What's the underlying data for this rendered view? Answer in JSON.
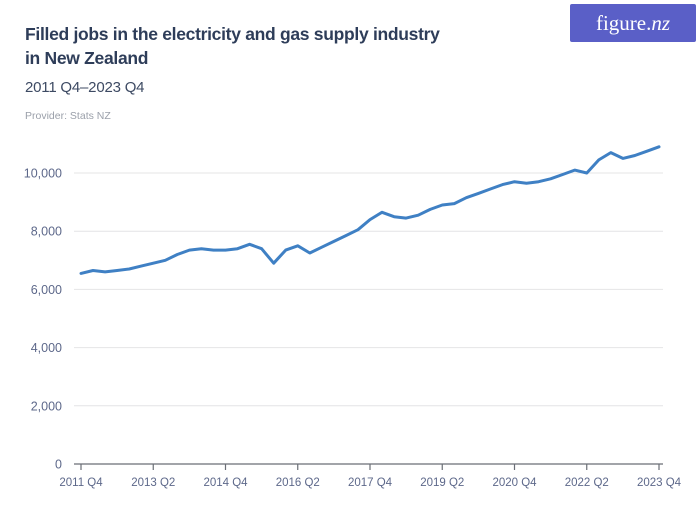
{
  "header": {
    "title_line1": "Filled jobs in the electricity and gas supply industry",
    "title_line2": "in New Zealand",
    "subtitle": "2011 Q4–2023 Q4",
    "provider": "Provider: Stats NZ"
  },
  "logo": {
    "text_regular": "figure.",
    "text_italic": "nz"
  },
  "colors": {
    "line": "#3f80c4",
    "logo_bg": "#5a5fc7",
    "title": "#2e3d59",
    "subtitle": "#3d4a63",
    "provider": "#9ba0aa",
    "axis_text": "#5d688a",
    "gridline": "#e4e4e6",
    "axis_line": "#6a6e76"
  },
  "chart_data": {
    "type": "line",
    "title": "Filled jobs in the electricity and gas supply industry in New Zealand",
    "subtitle": "2011 Q4–2023 Q4",
    "provider": "Stats NZ",
    "frequency": "quarterly",
    "legend": "none",
    "grid": "horizontal",
    "ylim": [
      0,
      11000
    ],
    "y_ticks": [
      0,
      2000,
      4000,
      6000,
      8000,
      10000
    ],
    "y_tick_labels": [
      "0",
      "2,000",
      "4,000",
      "6,000",
      "8,000",
      "10,000"
    ],
    "x_tick_labels": [
      "2011 Q4",
      "2013 Q2",
      "2014 Q4",
      "2016 Q2",
      "2017 Q4",
      "2019 Q2",
      "2020 Q4",
      "2022 Q2",
      "2023 Q4"
    ],
    "x_tick_indices": [
      0,
      6,
      12,
      18,
      24,
      30,
      36,
      42,
      48
    ],
    "x": [
      "2011 Q4",
      "2012 Q1",
      "2012 Q2",
      "2012 Q3",
      "2012 Q4",
      "2013 Q1",
      "2013 Q2",
      "2013 Q3",
      "2013 Q4",
      "2014 Q1",
      "2014 Q2",
      "2014 Q3",
      "2014 Q4",
      "2015 Q1",
      "2015 Q2",
      "2015 Q3",
      "2015 Q4",
      "2016 Q1",
      "2016 Q2",
      "2016 Q3",
      "2016 Q4",
      "2017 Q1",
      "2017 Q2",
      "2017 Q3",
      "2017 Q4",
      "2018 Q1",
      "2018 Q2",
      "2018 Q3",
      "2018 Q4",
      "2019 Q1",
      "2019 Q2",
      "2019 Q3",
      "2019 Q4",
      "2020 Q1",
      "2020 Q2",
      "2020 Q3",
      "2020 Q4",
      "2021 Q1",
      "2021 Q2",
      "2021 Q3",
      "2021 Q4",
      "2022 Q1",
      "2022 Q2",
      "2022 Q3",
      "2022 Q4",
      "2023 Q1",
      "2023 Q2",
      "2023 Q3",
      "2023 Q4"
    ],
    "series": [
      {
        "name": "Filled jobs",
        "values": [
          6550,
          6650,
          6600,
          6650,
          6700,
          6800,
          6900,
          7000,
          7200,
          7350,
          7400,
          7350,
          7350,
          7400,
          7550,
          7400,
          6900,
          7350,
          7500,
          7250,
          7450,
          7650,
          7850,
          8050,
          8400,
          8650,
          8500,
          8450,
          8550,
          8750,
          8900,
          8950,
          9150,
          9300,
          9450,
          9600,
          9700,
          9650,
          9700,
          9800,
          9950,
          10100,
          10000,
          10450,
          10700,
          10500,
          10600,
          10750,
          10900
        ]
      }
    ]
  }
}
